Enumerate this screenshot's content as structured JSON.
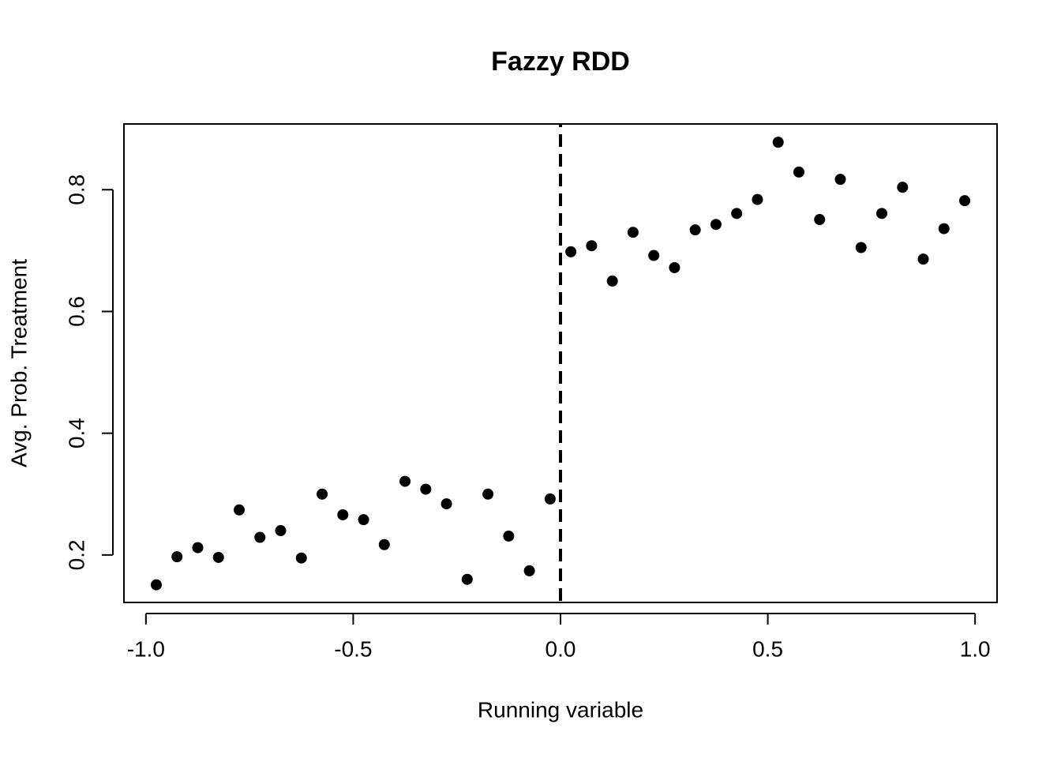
{
  "chart_data": {
    "type": "scatter",
    "title": "Fazzy RDD",
    "xlabel": "Running variable",
    "ylabel": "Avg. Prob. Treatment",
    "x": [
      -0.975,
      -0.925,
      -0.875,
      -0.825,
      -0.775,
      -0.725,
      -0.675,
      -0.625,
      -0.575,
      -0.525,
      -0.475,
      -0.425,
      -0.375,
      -0.325,
      -0.275,
      -0.225,
      -0.175,
      -0.125,
      -0.075,
      -0.025,
      0.025,
      0.075,
      0.125,
      0.175,
      0.225,
      0.275,
      0.325,
      0.375,
      0.425,
      0.475,
      0.525,
      0.575,
      0.625,
      0.675,
      0.725,
      0.775,
      0.825,
      0.875,
      0.925,
      0.975
    ],
    "values": [
      0.151,
      0.197,
      0.212,
      0.196,
      0.274,
      0.229,
      0.24,
      0.195,
      0.3,
      0.266,
      0.258,
      0.217,
      0.321,
      0.308,
      0.284,
      0.16,
      0.3,
      0.231,
      0.174,
      0.292,
      0.698,
      0.708,
      0.65,
      0.73,
      0.692,
      0.672,
      0.734,
      0.743,
      0.761,
      0.784,
      0.878,
      0.829,
      0.751,
      0.817,
      0.705,
      0.761,
      0.804,
      0.686,
      0.736,
      0.782
    ],
    "color": "#000000",
    "xlim": [
      -1.053,
      1.053
    ],
    "ylim": [
      0.122,
      0.908
    ],
    "xticks": [
      {
        "value": -1,
        "label": "-1.0"
      },
      {
        "value": -0.5,
        "label": "-0.5"
      },
      {
        "value": 0,
        "label": "0.0"
      },
      {
        "value": 0.5,
        "label": "0.5"
      },
      {
        "value": 1,
        "label": "1.0"
      }
    ],
    "yticks": [
      0.2,
      0.4,
      0.6,
      0.8
    ],
    "vline": 0
  }
}
